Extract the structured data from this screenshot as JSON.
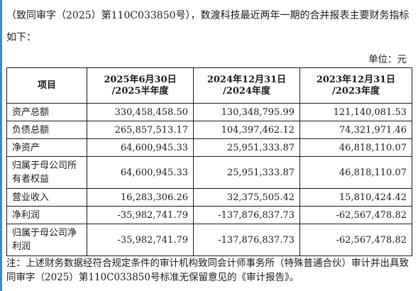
{
  "intro_text": "（致同审字（2025）第110C033850号），数渡科技最近两年一期的合并报表主要财务指标如下：",
  "unit_label": "单位：元",
  "table": {
    "headers": [
      {
        "line1": "项目",
        "line2": ""
      },
      {
        "line1": "2025年6月30日",
        "line2": "/2025半年度"
      },
      {
        "line1": "2024年12月31日",
        "line2": "/2024年度"
      },
      {
        "line1": "2023年12月31日",
        "line2": "/2023年度"
      }
    ],
    "rows": [
      {
        "label": "资产总额",
        "v2025": "330,458,458.50",
        "v2024": "130,348,795.99",
        "v2023": "121,140,081.53"
      },
      {
        "label": "负债总额",
        "v2025": "265,857,513.17",
        "v2024": "104,397,462.12",
        "v2023": "74,321,971.46"
      },
      {
        "label": "净资产",
        "v2025": "64,600,945.33",
        "v2024": "25,951,333.87",
        "v2023": "46,818,110.07"
      },
      {
        "label": "归属于母公司所有者权益",
        "v2025": "64,600,945.33",
        "v2024": "25,951,333.87",
        "v2023": "46,818,110.07"
      },
      {
        "label": "营业收入",
        "v2025": "16,283,306.26",
        "v2024": "32,375,505.42",
        "v2023": "15,810,424.42"
      },
      {
        "label": "净利润",
        "v2025": "-35,982,741.79",
        "v2024": "-137,876,837.73",
        "v2023": "-62,567,478.82"
      },
      {
        "label": "归属于母公司净利润",
        "v2025": "-35,982,741.79",
        "v2024": "-137,876,837.73",
        "v2023": "-62,567,478.82"
      }
    ]
  },
  "note_text": "注：上述财务数据经符合规定条件的审计机构致同会计师事务所（特殊普通合伙）审计并出具致同审字（2025）第110C033850号标准无保留意见的《审计报告》。",
  "colors": {
    "accent_bar": "#2f8fd8",
    "text": "#1a1a1a",
    "border": "#1a1a1a"
  }
}
